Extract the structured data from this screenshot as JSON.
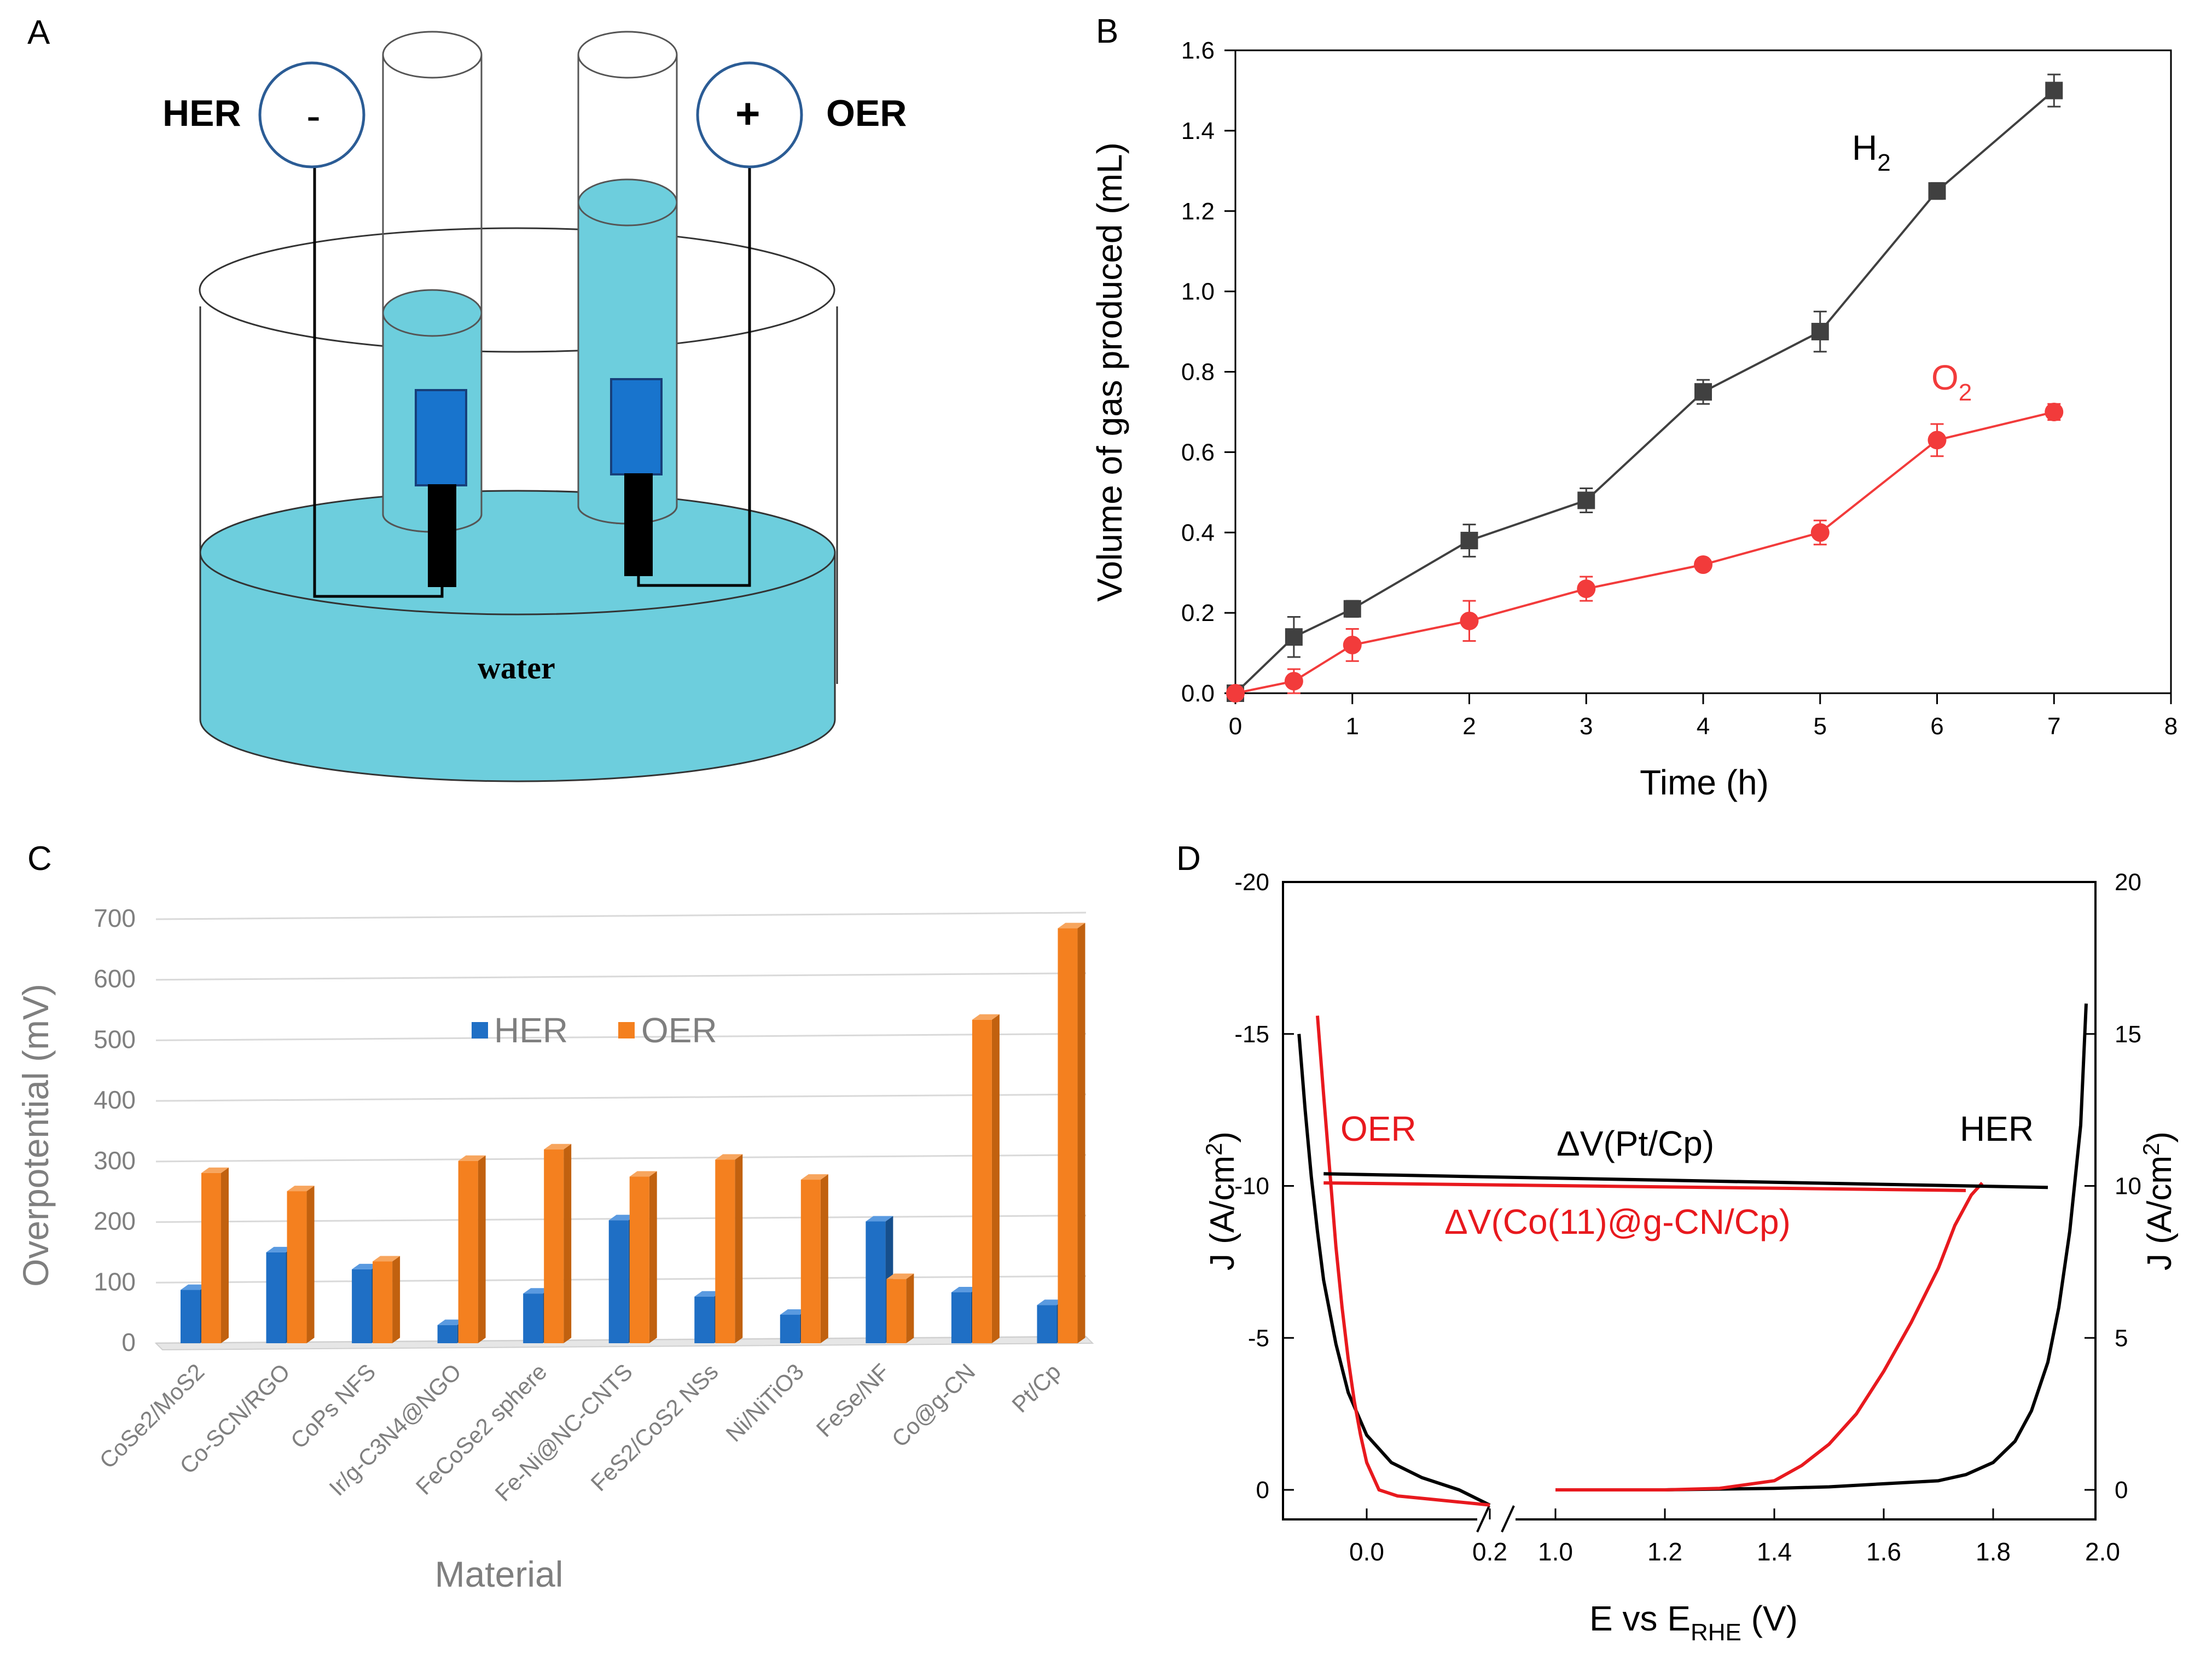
{
  "colors": {
    "water": "#6dcedd",
    "water_dark": "#5ab8c7",
    "electrode_blue": "#1874cd",
    "electrode_border": "#173f7a",
    "circle_border": "#2b5c95",
    "h2": "#404040",
    "o2": "#f23b3b",
    "her_bar": "#1f6fc5",
    "oer_bar": "#f4801f",
    "oer_bar_dark": "#c1610f",
    "her_bar_dark": "#164f8c",
    "black": "#000000",
    "red": "#e8191e",
    "grey_text": "#7f7f7f"
  },
  "panel_a": {
    "letter": "A",
    "her_label": "HER",
    "oer_label": "OER",
    "minus_sign": "-",
    "plus_sign": "+",
    "water_label": "water"
  },
  "chart_data": [
    {
      "panel": "B",
      "type": "line",
      "title": "",
      "xlabel": "Time (h)",
      "ylabel": "Volume of gas produced (mL)",
      "xlim": [
        0,
        8
      ],
      "ylim": [
        0.0,
        1.6
      ],
      "xticks": [
        "0",
        "1",
        "2",
        "3",
        "4",
        "5",
        "6",
        "7",
        "8"
      ],
      "yticks": [
        "0.0",
        "0.2",
        "0.4",
        "0.6",
        "0.8",
        "1.0",
        "1.2",
        "1.4",
        "1.6"
      ],
      "series": [
        {
          "name": "H",
          "subscript": "2",
          "marker": "square",
          "x": [
            0,
            0.5,
            1,
            2,
            3,
            4,
            5,
            6,
            7
          ],
          "y": [
            0.0,
            0.14,
            0.21,
            0.38,
            0.48,
            0.75,
            0.9,
            1.25,
            1.5
          ],
          "err": [
            0,
            0.05,
            0.02,
            0.04,
            0.03,
            0.03,
            0.05,
            0.02,
            0.04
          ]
        },
        {
          "name": "O",
          "subscript": "2",
          "marker": "circle",
          "x": [
            0,
            0.5,
            1,
            2,
            3,
            4,
            5,
            6,
            7
          ],
          "y": [
            0.0,
            0.03,
            0.12,
            0.18,
            0.26,
            0.32,
            0.4,
            0.63,
            0.7
          ],
          "err": [
            0,
            0.03,
            0.04,
            0.05,
            0.03,
            0.01,
            0.03,
            0.04,
            0.02
          ]
        }
      ]
    },
    {
      "panel": "C",
      "type": "bar",
      "title": "",
      "xlabel": "Material",
      "ylabel": "Overpotential (mV)",
      "ylim": [
        0,
        700
      ],
      "yticks": [
        "0",
        "100",
        "200",
        "300",
        "400",
        "500",
        "600",
        "700"
      ],
      "legend": "top-center",
      "categories": [
        "CoSe2/MoS2",
        "Co-SCN/RGO",
        "CoPs NFS",
        "Ir/g-C3N4@NGO",
        "FeCoSe2 sphere",
        "Fe-Ni@NC-CNTS",
        "FeS2/CoS2 NSs",
        "Ni/NiTiO3",
        "FeSe/NF",
        "Co@g-CN",
        "Pt/Cp"
      ],
      "series": [
        {
          "name": "HER",
          "values": [
            88,
            150,
            122,
            30,
            82,
            203,
            77,
            47,
            201,
            84,
            63
          ]
        },
        {
          "name": "OER",
          "values": [
            281,
            251,
            135,
            301,
            320,
            275,
            303,
            270,
            106,
            534,
            685
          ]
        }
      ]
    },
    {
      "panel": "D",
      "type": "line",
      "title": "",
      "xlabel": "E vs E",
      "xlabel_sub": "RHE",
      "xlabel_unit": " (V)",
      "ylabel_left": "J (A/cm",
      "ylabel_left_sup": "2",
      "ylabel_left_end": ")",
      "ylabel_right": "J (A/cm",
      "ylabel_right_sup": "2",
      "ylabel_right_end": ")",
      "xticks_left": [
        "0.0",
        "0.2"
      ],
      "xticks_right": [
        "1.0",
        "1.2",
        "1.4",
        "1.6",
        "1.8",
        "2.0"
      ],
      "yticks_left": [
        "-20",
        "-15",
        "-10",
        "-5",
        "0"
      ],
      "yticks_right": [
        "20",
        "15",
        "10",
        "5",
        "0"
      ],
      "ylim": [
        -1,
        20
      ],
      "annotations": {
        "oer": "OER",
        "her": "HER",
        "dv_pt": "ΔV(Pt/Cp)",
        "dv_co": "ΔV(Co(11)@g-CN/Cp)"
      },
      "series": [
        {
          "name": "Pt/Cp OER",
          "x": [
            -0.11,
            -0.1,
            -0.09,
            -0.08,
            -0.07,
            -0.05,
            -0.03,
            0.0,
            0.04,
            0.09,
            0.15,
            0.2
          ],
          "y": [
            15.0,
            12.5,
            10.3,
            8.5,
            6.9,
            4.8,
            3.2,
            1.8,
            0.9,
            0.4,
            0.0,
            -0.5
          ]
        },
        {
          "name": "Co(11)@g-CN/Cp OER",
          "x": [
            -0.08,
            -0.07,
            -0.06,
            -0.05,
            -0.04,
            -0.03,
            -0.02,
            -0.01,
            0.0,
            0.02,
            0.05,
            0.1,
            0.15,
            0.2
          ],
          "y": [
            15.6,
            13.0,
            10.5,
            8.0,
            6.0,
            4.3,
            2.9,
            1.8,
            0.9,
            0.0,
            -0.2,
            -0.3,
            -0.4,
            -0.5
          ]
        },
        {
          "name": "Pt/Cp HER",
          "x": [
            1.0,
            1.2,
            1.4,
            1.5,
            1.6,
            1.7,
            1.75,
            1.8,
            1.84,
            1.87,
            1.9,
            1.92,
            1.94,
            1.96,
            1.97
          ],
          "y": [
            0.0,
            0.0,
            0.05,
            0.1,
            0.2,
            0.3,
            0.5,
            0.9,
            1.6,
            2.6,
            4.2,
            6.0,
            8.5,
            12.0,
            16.0
          ]
        },
        {
          "name": "Co(11)@g-CN/Cp HER",
          "x": [
            1.0,
            1.2,
            1.3,
            1.4,
            1.45,
            1.5,
            1.55,
            1.6,
            1.65,
            1.7,
            1.73,
            1.76,
            1.78
          ],
          "y": [
            0.0,
            0.0,
            0.05,
            0.3,
            0.8,
            1.5,
            2.5,
            3.9,
            5.5,
            7.3,
            8.7,
            9.7,
            10.1
          ]
        },
        {
          "name": "ΔV(Pt/Cp)",
          "x": [
            -0.07,
            1.9
          ],
          "y": [
            10.4,
            9.95
          ]
        },
        {
          "name": "ΔV(Co(11)@g-CN/Cp)",
          "x": [
            -0.07,
            1.75
          ],
          "y": [
            10.1,
            9.85
          ]
        }
      ]
    }
  ]
}
